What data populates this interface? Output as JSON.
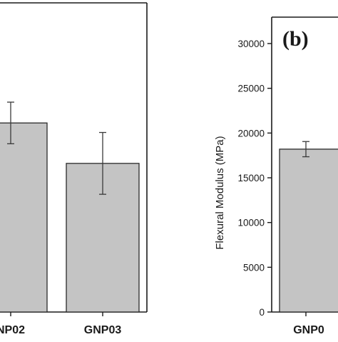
{
  "colors": {
    "bar_fill": "#c4c4c4",
    "bar_stroke": "#2a2a2a",
    "axis": "#1a1a1a",
    "error_bar": "#3a3a3a",
    "background": "#ffffff"
  },
  "chart_data": [
    {
      "panel": "a",
      "type": "bar",
      "title": "",
      "xlabel": "",
      "ylabel": "",
      "categories": [
        "NP02",
        "GNP03"
      ],
      "values": [
        31.8,
        25.0
      ],
      "errors": [
        3.5,
        5.2
      ],
      "ylim": [
        0,
        52
      ],
      "grid": false,
      "partial": true,
      "note_clipped_category_prefix_hidden": true
    },
    {
      "panel": "b",
      "panel_label": "(b)",
      "type": "bar",
      "title": "",
      "xlabel": "",
      "ylabel": "Flexural Modulus (MPa)",
      "ylim": [
        0,
        30000
      ],
      "yticks": [
        0,
        5000,
        10000,
        15000,
        20000,
        25000,
        30000
      ],
      "categories": [
        "GNP0"
      ],
      "values": [
        18200
      ],
      "errors": [
        850
      ],
      "grid": false,
      "partial": true
    }
  ]
}
